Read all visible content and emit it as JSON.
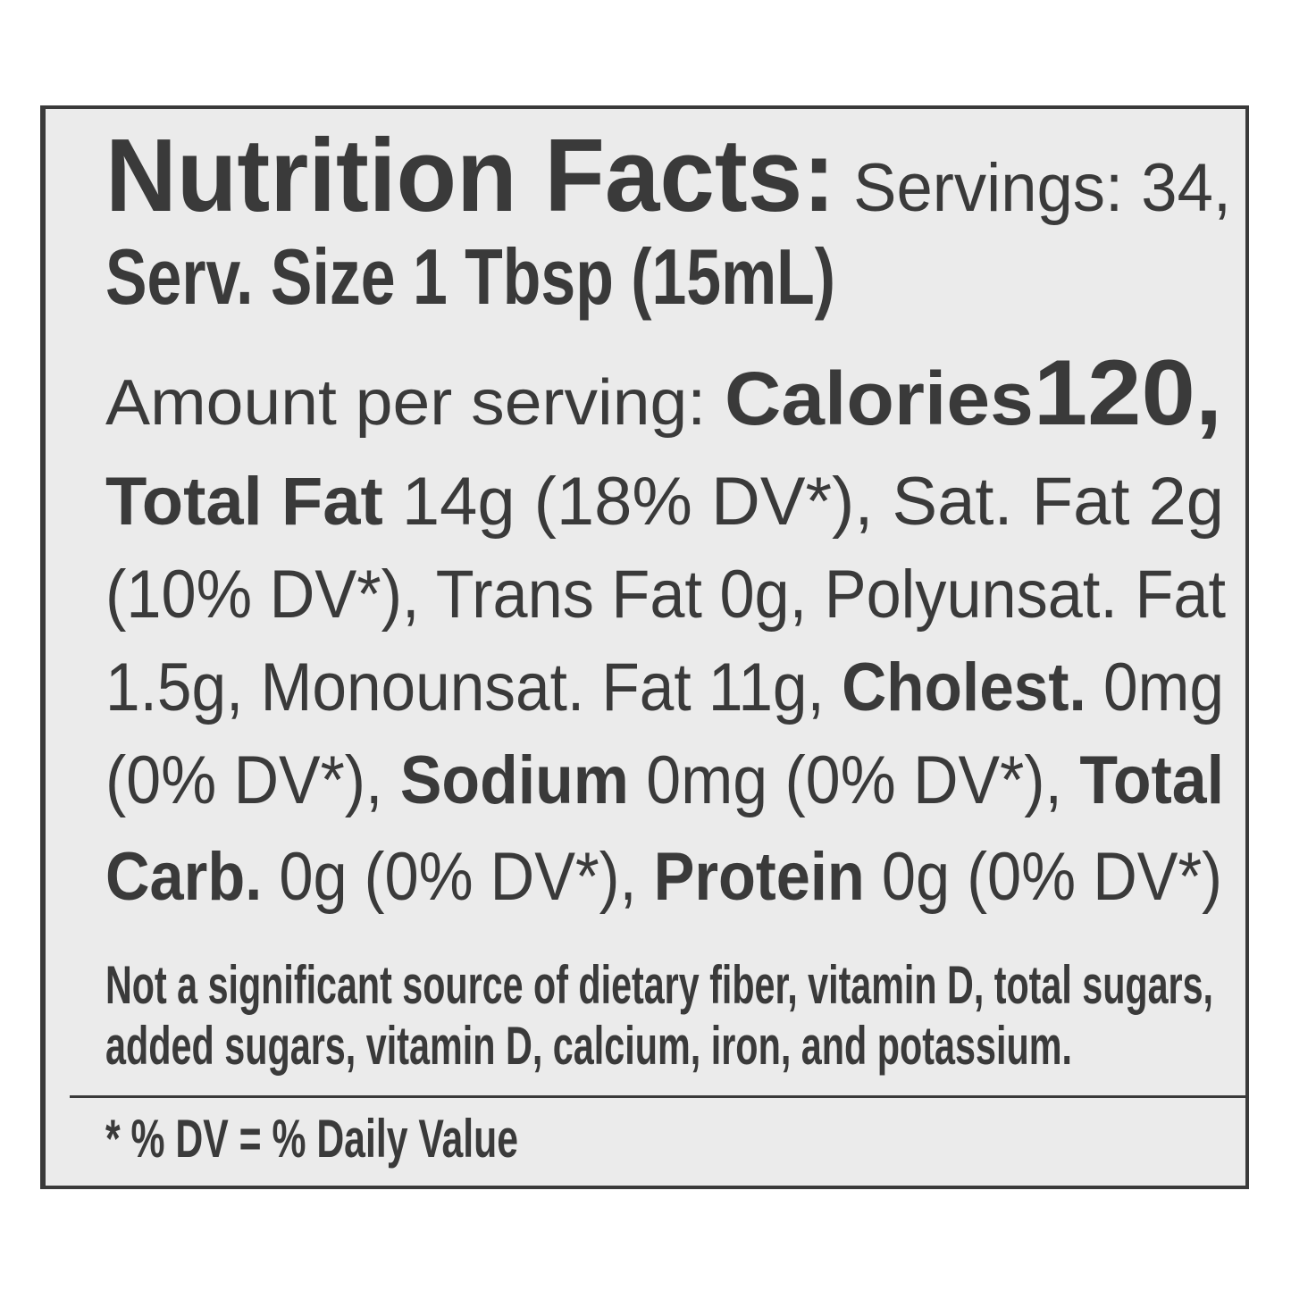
{
  "label": {
    "title": "Nutrition Facts:",
    "servings": " Servings: 34,",
    "serving_size": "Serv. Size 1 Tbsp (15mL)",
    "amount_label": "Amount per serving: ",
    "calories_label": "Calories",
    "calories_value": "120,",
    "body_lines": [
      [
        {
          "t": "Total Fat",
          "b": true
        },
        {
          "t": " 14g (18% DV*), Sat. Fat 2g",
          "b": false
        }
      ],
      [
        {
          "t": "(10% DV*), Trans Fat 0g, Polyunsat. Fat",
          "b": false
        }
      ],
      [
        {
          "t": "1.5g, Monounsat. Fat 11g, ",
          "b": false
        },
        {
          "t": "Cholest.",
          "b": true
        },
        {
          "t": " 0mg",
          "b": false
        }
      ],
      [
        {
          "t": "(0% DV*), ",
          "b": false
        },
        {
          "t": "Sodium",
          "b": true
        },
        {
          "t": " 0mg (0% DV*), ",
          "b": false
        },
        {
          "t": "Total",
          "b": true
        }
      ],
      [
        {
          "t": "Carb.",
          "b": true
        },
        {
          "t": " 0g (0% DV*), ",
          "b": false
        },
        {
          "t": "Protein",
          "b": true
        },
        {
          "t": " 0g (0% DV*)",
          "b": false
        }
      ]
    ],
    "footnote_lines": [
      "Not a significant source of dietary fiber, vitamin D, total sugars,",
      "added sugars, vitamin D, calcium, iron, and potassium."
    ],
    "dv_note": "* % DV = % Daily Value"
  }
}
